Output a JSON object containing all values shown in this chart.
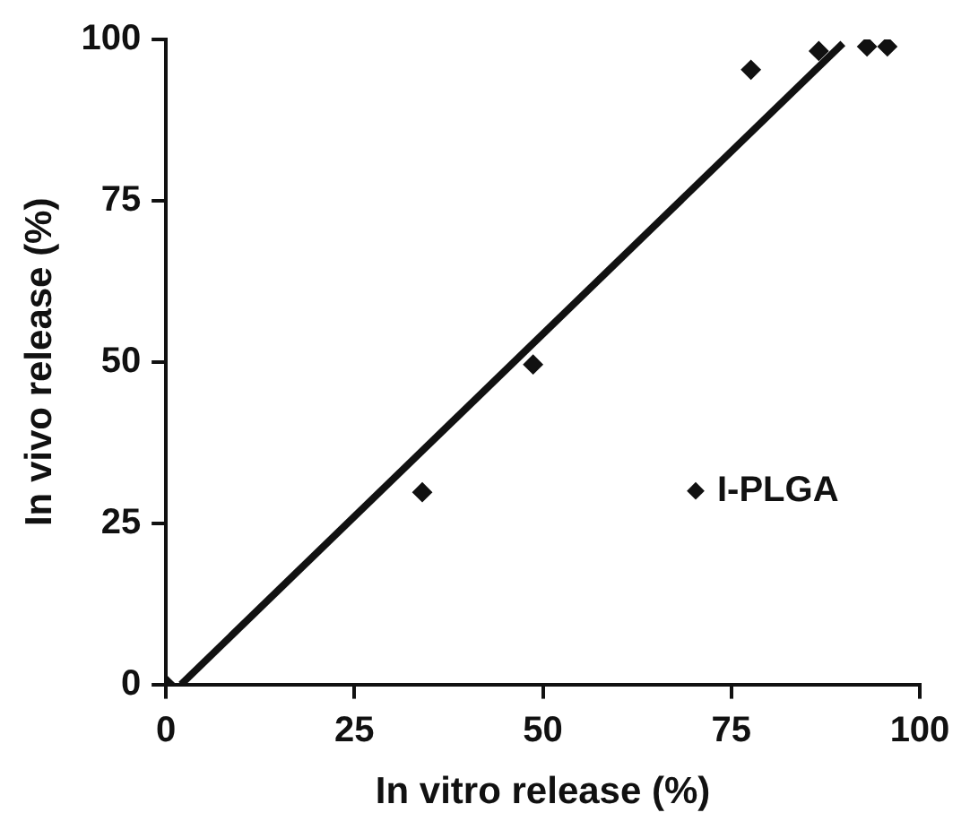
{
  "chart_data": {
    "type": "scatter",
    "xlabel": "In vitro release (%)",
    "ylabel": "In vivo release (%)",
    "xlim": [
      0,
      100
    ],
    "ylim": [
      0,
      100
    ],
    "xticks": [
      0,
      25,
      50,
      75,
      100
    ],
    "yticks": [
      0,
      25,
      50,
      75,
      100
    ],
    "grid": false,
    "legend": "right",
    "marker": "diamond",
    "series": [
      {
        "name": "I-PLGA",
        "color": "#111111",
        "x": [
          0,
          34,
          48.7,
          77.6,
          86.6,
          93,
          95.7
        ],
        "values": [
          0,
          29.8,
          49.6,
          95.3,
          98.2,
          98.9,
          98.9
        ]
      },
      {
        "type": "line",
        "color": "#111111",
        "marker": "none",
        "x": [
          2,
          89.8
        ],
        "values": [
          0,
          99.4
        ]
      }
    ]
  }
}
